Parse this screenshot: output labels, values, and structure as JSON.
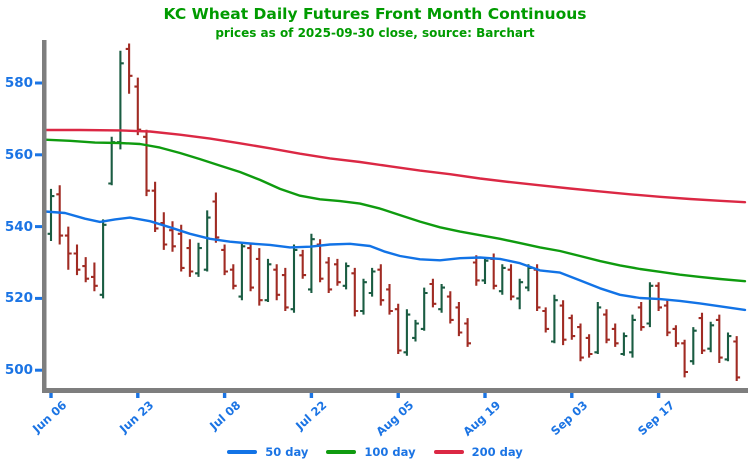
{
  "header": {
    "title": "KC Wheat Daily Futures Front Month Continuous",
    "subtitle": "prices as of 2025-09-30 close, source: Barchart"
  },
  "colors": {
    "title_green": "#009B00",
    "axis_label_blue": "#1B74E4",
    "axis_gray": "#7E7E7E",
    "bar_up_green": "#1A5C42",
    "bar_down_red": "#A02B23",
    "ma50_blue": "#1273E6",
    "ma100_green": "#0F9B0F",
    "ma200_red": "#DB2844"
  },
  "legend": {
    "items": [
      {
        "label": "50 day",
        "color": "#1273E6"
      },
      {
        "label": "100 day",
        "color": "#0F9B0F"
      },
      {
        "label": "200 day",
        "color": "#DB2844"
      }
    ]
  },
  "chart_data": {
    "type": "ohlc",
    "title": "KC Wheat Daily Futures Front Month Continuous",
    "subtitle": "prices as of 2025-09-30 close, source: Barchart",
    "ylabel": "",
    "ylim": [
      495,
      592
    ],
    "grid": false,
    "legend_position": "bottom-center",
    "y_axis": {
      "ticks": [
        580,
        560,
        540,
        520,
        500
      ]
    },
    "x_axis": {
      "ticks": [
        {
          "index": 1,
          "label": "Jun 06"
        },
        {
          "index": 11,
          "label": "Jun 23"
        },
        {
          "index": 21,
          "label": "Jul 08"
        },
        {
          "index": 31,
          "label": "Jul 22"
        },
        {
          "index": 41,
          "label": "Aug 05"
        },
        {
          "index": 51,
          "label": "Aug 19"
        },
        {
          "index": 61,
          "label": "Sep 03"
        },
        {
          "index": 71,
          "label": "Sep 17"
        }
      ]
    },
    "bar_columns": [
      "date",
      "open",
      "high",
      "low",
      "close"
    ],
    "bars": [
      [
        "Jun 05",
        539,
        549,
        537,
        548
      ],
      [
        "Jun 06",
        538,
        550.5,
        536,
        548.5
      ],
      [
        "Jun 09",
        549,
        551.5,
        535,
        537.5
      ],
      [
        "Jun 10",
        537.5,
        540,
        528,
        532.5
      ],
      [
        "Jun 11",
        532.5,
        535,
        526.5,
        528
      ],
      [
        "Jun 12",
        529,
        531.5,
        524.5,
        525.5
      ],
      [
        "Jun 13",
        526,
        530,
        522,
        523.5
      ],
      [
        "Jun 16",
        521,
        542,
        520,
        540.5
      ],
      [
        "Jun 17",
        552,
        565,
        551.5,
        563.5
      ],
      [
        "Jun 18",
        563.5,
        589,
        561.5,
        585.5
      ],
      [
        "Jun 20",
        589.5,
        591,
        577,
        582
      ],
      [
        "Jun 23",
        579,
        581.5,
        565.5,
        567
      ],
      [
        "Jun 24",
        565,
        567,
        548.5,
        550
      ],
      [
        "Jun 25",
        550,
        552.5,
        538.5,
        539.5
      ],
      [
        "Jun 26",
        541,
        544,
        533.5,
        535
      ],
      [
        "Jun 27",
        539,
        541.5,
        533,
        534.5
      ],
      [
        "Jun 30",
        538,
        540.5,
        527.5,
        528.5
      ],
      [
        "Jul 01",
        534,
        536.5,
        526,
        527.5
      ],
      [
        "Jul 02",
        527,
        535.5,
        526,
        534
      ],
      [
        "Jul 03",
        528,
        544.5,
        527.5,
        542.5
      ],
      [
        "Jul 07",
        547,
        549.5,
        535.5,
        537
      ],
      [
        "Jul 08",
        533.5,
        535,
        526.5,
        527.5
      ],
      [
        "Jul 09",
        528,
        529.5,
        522.5,
        523.5
      ],
      [
        "Jul 10",
        520.5,
        535.5,
        519.5,
        534.5
      ],
      [
        "Jul 11",
        534,
        535.5,
        522,
        523
      ],
      [
        "Jul 14",
        531,
        534,
        518,
        519.5
      ],
      [
        "Jul 15",
        519.5,
        531,
        519,
        529.5
      ],
      [
        "Jul 16",
        528,
        529.5,
        519.5,
        521
      ],
      [
        "Jul 17",
        526.5,
        528.5,
        516.5,
        517.5
      ],
      [
        "Jul 18",
        517,
        535,
        516,
        533.5
      ],
      [
        "Jul 21",
        532,
        533.5,
        525.5,
        526.5
      ],
      [
        "Jul 22",
        522.5,
        538,
        521.5,
        536.5
      ],
      [
        "Jul 23",
        535,
        536.5,
        524.5,
        525.5
      ],
      [
        "Jul 24",
        530,
        531.5,
        521.5,
        522.5
      ],
      [
        "Jul 25",
        529.5,
        531,
        523.5,
        524.5
      ],
      [
        "Jul 28",
        523.5,
        530,
        522.5,
        529
      ],
      [
        "Jul 29",
        527,
        528.5,
        515,
        516.5
      ],
      [
        "Jul 30",
        516.5,
        525.5,
        515.5,
        524.5
      ],
      [
        "Jul 31",
        521.5,
        528.5,
        520.5,
        527.5
      ],
      [
        "Aug 01",
        528,
        529.5,
        518,
        519.5
      ],
      [
        "Aug 04",
        522.5,
        524,
        515.5,
        516.5
      ],
      [
        "Aug 05",
        517,
        518.5,
        504.5,
        505.5
      ],
      [
        "Aug 06",
        505,
        517,
        504,
        515.5
      ],
      [
        "Aug 07",
        509,
        514,
        508,
        513
      ],
      [
        "Aug 08",
        511.5,
        523,
        511,
        521.5
      ],
      [
        "Aug 11",
        524,
        525.5,
        517.5,
        518.5
      ],
      [
        "Aug 12",
        517,
        524,
        516,
        523
      ],
      [
        "Aug 13",
        520.5,
        522,
        513,
        514
      ],
      [
        "Aug 14",
        517.5,
        519,
        509.5,
        510.5
      ],
      [
        "Aug 15",
        513,
        514.5,
        506.5,
        507.5
      ],
      [
        "Aug 18",
        530,
        532,
        523.5,
        525
      ],
      [
        "Aug 19",
        525,
        531.5,
        524,
        530.5
      ],
      [
        "Aug 20",
        531,
        532.5,
        522.5,
        523.5
      ],
      [
        "Aug 21",
        522,
        529.5,
        521,
        528.5
      ],
      [
        "Aug 22",
        528,
        529.5,
        519.5,
        520.5
      ],
      [
        "Aug 25",
        520,
        525.5,
        517,
        524.5
      ],
      [
        "Aug 26",
        523,
        529.5,
        522,
        528.5
      ],
      [
        "Aug 27",
        528,
        529.5,
        516.5,
        517.5
      ],
      [
        "Aug 28",
        516.5,
        517.5,
        510.5,
        511.5
      ],
      [
        "Aug 29",
        508,
        521,
        507.5,
        519.5
      ],
      [
        "Sep 02",
        518,
        519.5,
        507,
        508.5
      ],
      [
        "Sep 03",
        514.5,
        515.5,
        508.5,
        509.5
      ],
      [
        "Sep 04",
        512,
        513,
        502.5,
        503.5
      ],
      [
        "Sep 05",
        509,
        510,
        503.5,
        504.5
      ],
      [
        "Sep 08",
        505,
        519,
        504.5,
        517.5
      ],
      [
        "Sep 09",
        515.5,
        517,
        507.5,
        508.5
      ],
      [
        "Sep 10",
        511.5,
        513,
        506.5,
        507.5
      ],
      [
        "Sep 11",
        504.5,
        510.5,
        504,
        509.5
      ],
      [
        "Sep 12",
        505,
        515.5,
        503.5,
        514
      ],
      [
        "Sep 15",
        517.5,
        519,
        511,
        512
      ],
      [
        "Sep 16",
        513,
        524.5,
        512,
        523.5
      ],
      [
        "Sep 17",
        523.5,
        524.5,
        516.5,
        517.5
      ],
      [
        "Sep 18",
        518,
        519.5,
        509.5,
        510.5
      ],
      [
        "Sep 19",
        511.5,
        512.5,
        506.5,
        507.5
      ],
      [
        "Sep 22",
        507.5,
        508.5,
        498,
        499.5
      ],
      [
        "Sep 23",
        502.5,
        512,
        501.5,
        511
      ],
      [
        "Sep 24",
        514.5,
        516,
        504.5,
        505.5
      ],
      [
        "Sep 25",
        506,
        513.5,
        505,
        512.5
      ],
      [
        "Sep 26",
        514,
        515.5,
        502,
        503.5
      ],
      [
        "Sep 29",
        503,
        510.5,
        502.5,
        509.5
      ],
      [
        "Sep 30",
        508,
        509.5,
        497,
        498
      ]
    ],
    "moving_averages": [
      {
        "name": "50 day",
        "color": "#1273E6",
        "points": [
          [
            45,
            544.2
          ],
          [
            65,
            543.8
          ],
          [
            85,
            542.2
          ],
          [
            100,
            541.3
          ],
          [
            115,
            542.0
          ],
          [
            130,
            542.5
          ],
          [
            150,
            541.5
          ],
          [
            170,
            539.8
          ],
          [
            190,
            538.0
          ],
          [
            210,
            536.6
          ],
          [
            230,
            535.8
          ],
          [
            250,
            535.3
          ],
          [
            270,
            534.9
          ],
          [
            290,
            534.2
          ],
          [
            310,
            534.4
          ],
          [
            330,
            535.0
          ],
          [
            350,
            535.2
          ],
          [
            370,
            534.6
          ],
          [
            385,
            533.0
          ],
          [
            400,
            531.8
          ],
          [
            420,
            530.9
          ],
          [
            440,
            530.6
          ],
          [
            460,
            531.2
          ],
          [
            480,
            531.4
          ],
          [
            500,
            531.0
          ],
          [
            520,
            529.8
          ],
          [
            540,
            527.8
          ],
          [
            560,
            527.2
          ],
          [
            580,
            525.0
          ],
          [
            600,
            522.8
          ],
          [
            620,
            521.0
          ],
          [
            640,
            520.1
          ],
          [
            660,
            519.8
          ],
          [
            680,
            519.3
          ],
          [
            700,
            518.6
          ],
          [
            720,
            517.8
          ],
          [
            745,
            516.8
          ]
        ]
      },
      {
        "name": "100 day",
        "color": "#0F9B0F",
        "points": [
          [
            45,
            564.2
          ],
          [
            70,
            563.9
          ],
          [
            95,
            563.4
          ],
          [
            120,
            563.3
          ],
          [
            140,
            563.0
          ],
          [
            160,
            562.0
          ],
          [
            180,
            560.5
          ],
          [
            200,
            558.8
          ],
          [
            220,
            557.0
          ],
          [
            240,
            555.2
          ],
          [
            260,
            553.0
          ],
          [
            280,
            550.5
          ],
          [
            300,
            548.6
          ],
          [
            320,
            547.6
          ],
          [
            340,
            547.1
          ],
          [
            360,
            546.4
          ],
          [
            380,
            545.0
          ],
          [
            400,
            543.2
          ],
          [
            420,
            541.4
          ],
          [
            440,
            539.8
          ],
          [
            460,
            538.6
          ],
          [
            480,
            537.6
          ],
          [
            500,
            536.6
          ],
          [
            520,
            535.4
          ],
          [
            540,
            534.2
          ],
          [
            560,
            533.2
          ],
          [
            580,
            531.8
          ],
          [
            600,
            530.4
          ],
          [
            620,
            529.2
          ],
          [
            640,
            528.2
          ],
          [
            660,
            527.4
          ],
          [
            680,
            526.6
          ],
          [
            700,
            526.0
          ],
          [
            720,
            525.4
          ],
          [
            745,
            524.8
          ]
        ]
      },
      {
        "name": "200 day",
        "color": "#DB2844",
        "points": [
          [
            45,
            566.9
          ],
          [
            80,
            566.9
          ],
          [
            120,
            566.8
          ],
          [
            150,
            566.5
          ],
          [
            180,
            565.6
          ],
          [
            210,
            564.5
          ],
          [
            240,
            563.2
          ],
          [
            270,
            561.8
          ],
          [
            300,
            560.3
          ],
          [
            330,
            559.0
          ],
          [
            360,
            558.0
          ],
          [
            390,
            556.8
          ],
          [
            420,
            555.6
          ],
          [
            450,
            554.6
          ],
          [
            480,
            553.4
          ],
          [
            510,
            552.4
          ],
          [
            540,
            551.5
          ],
          [
            570,
            550.6
          ],
          [
            600,
            549.8
          ],
          [
            630,
            549.0
          ],
          [
            660,
            548.3
          ],
          [
            690,
            547.7
          ],
          [
            720,
            547.2
          ],
          [
            745,
            546.8
          ]
        ]
      }
    ]
  }
}
